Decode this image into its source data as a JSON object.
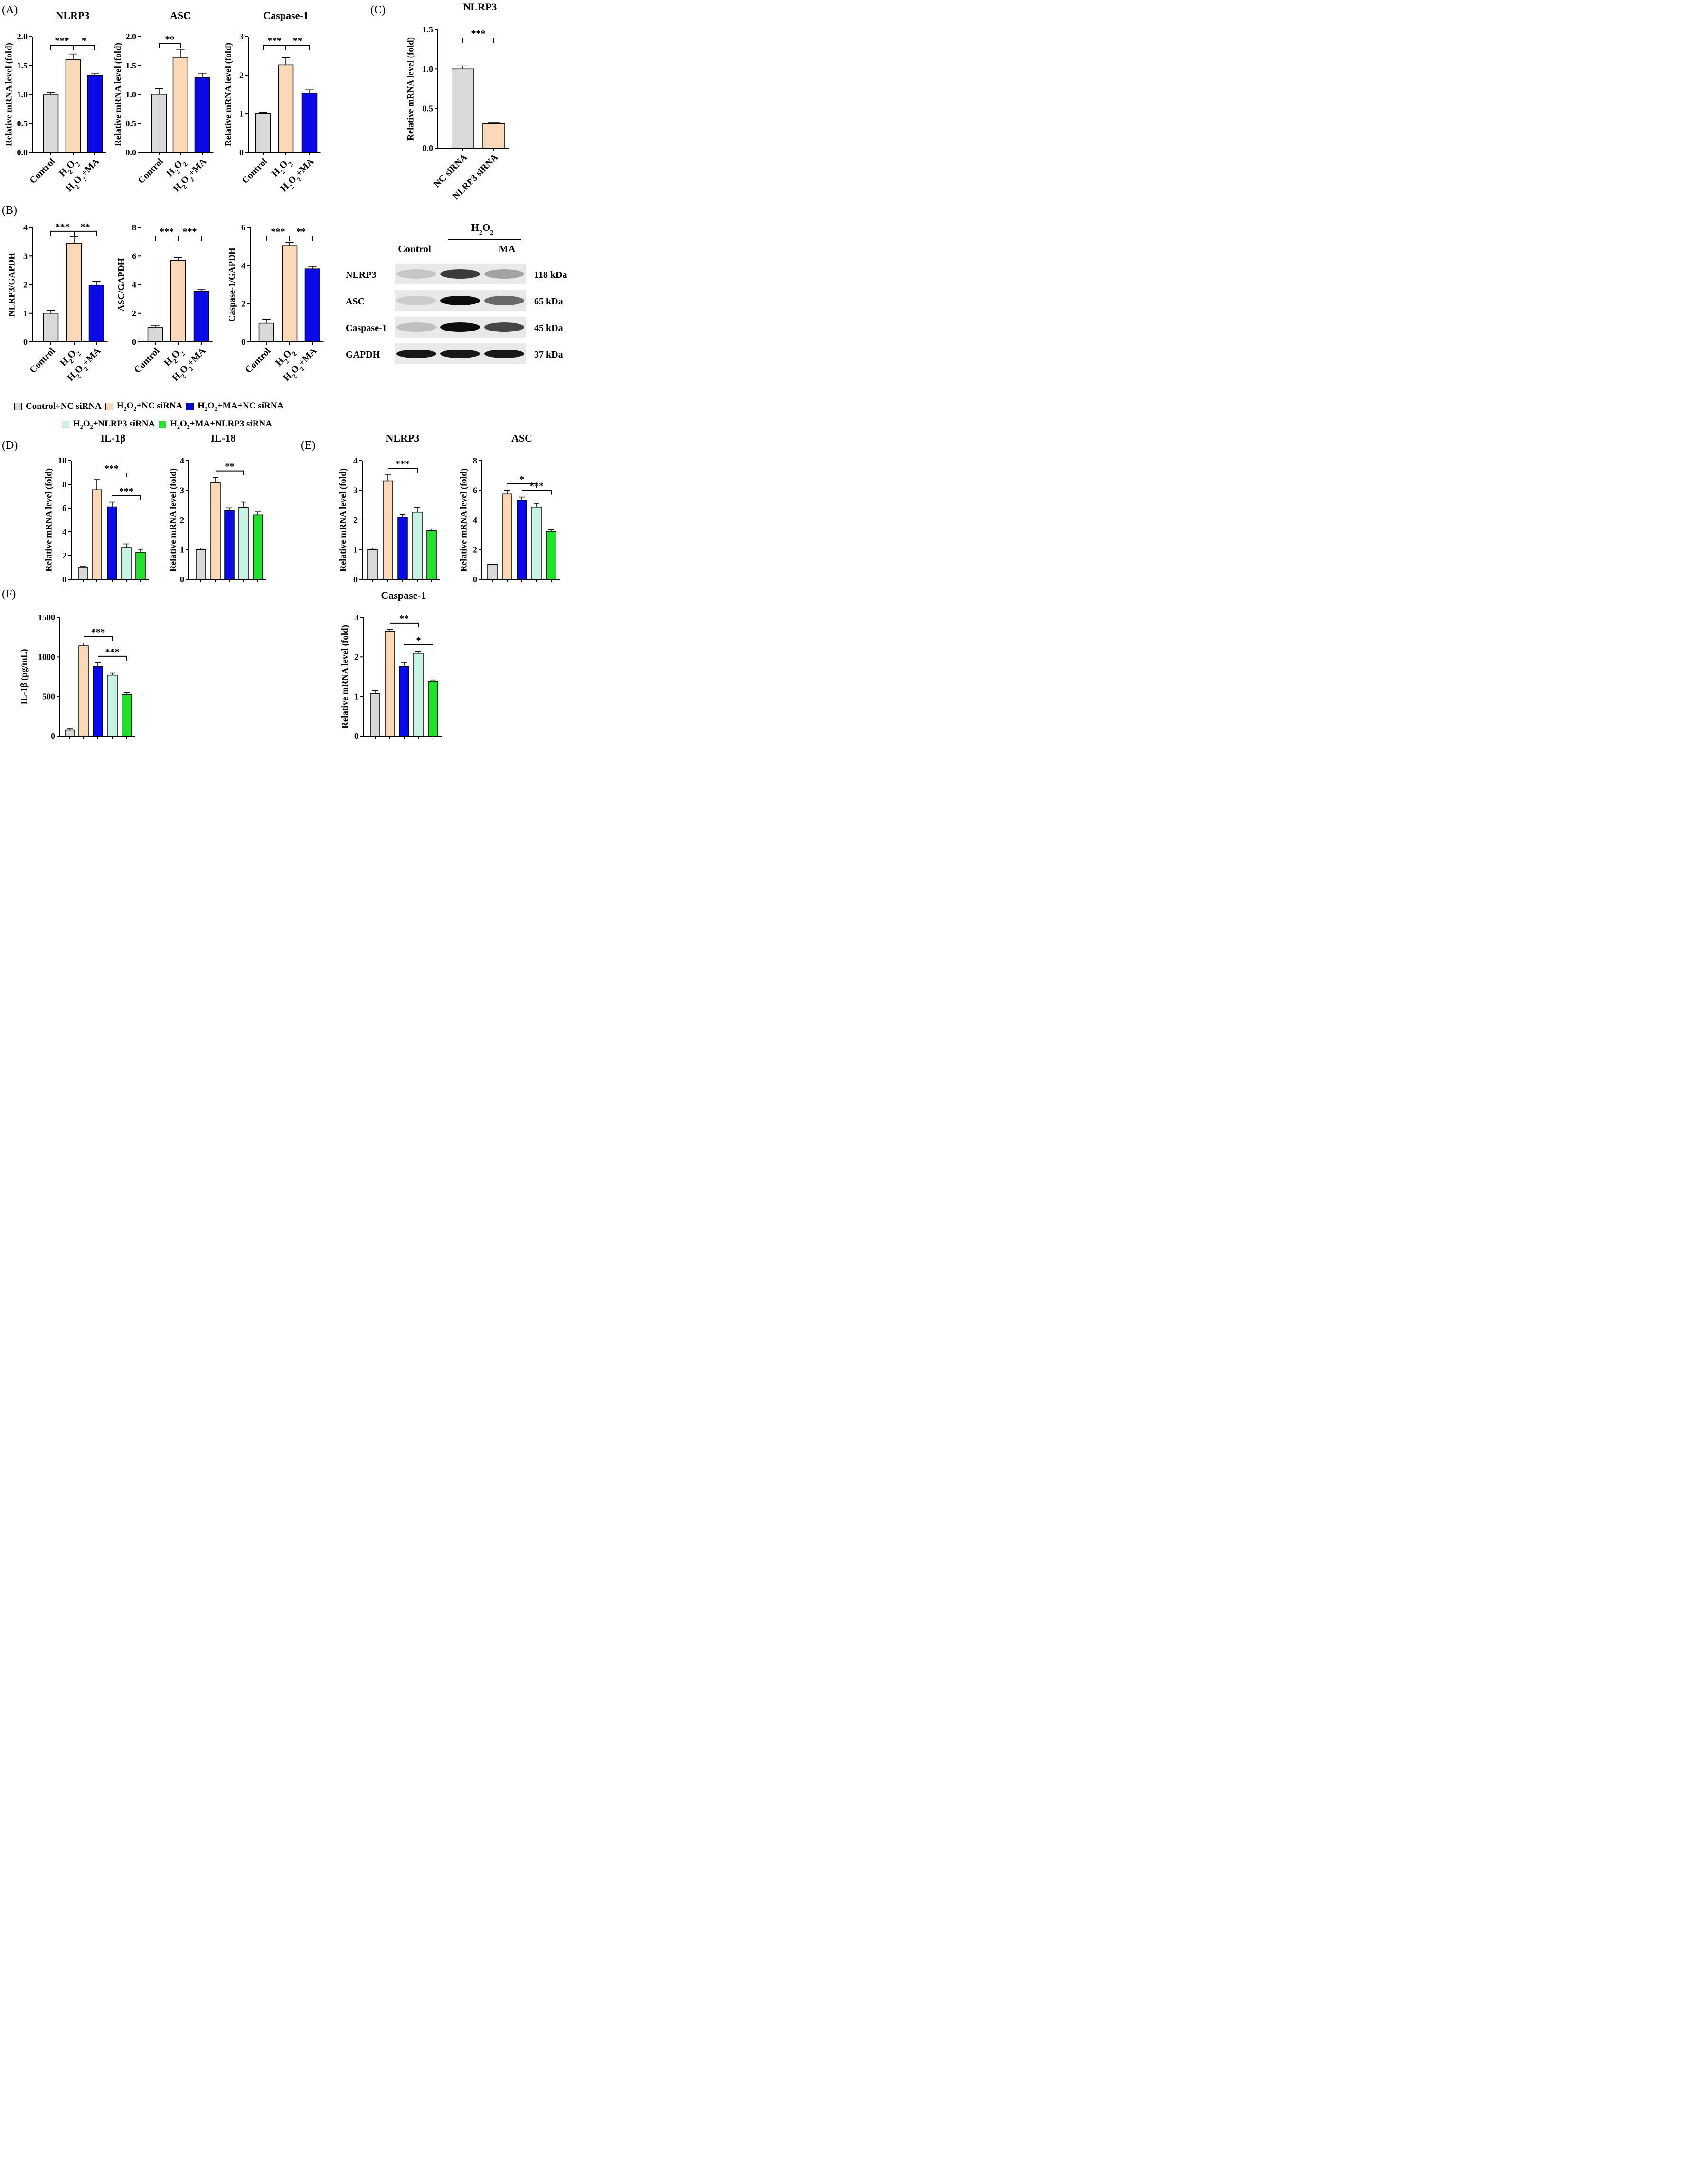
{
  "colors": {
    "control": "#d9d9d9",
    "h2o2": "#fbd9b8",
    "h2o2_ma": "#0a0ae6",
    "h2o2_nlrp3": "#c6f3e4",
    "h2o2_ma_nlrp3": "#22e02d"
  },
  "panel_letters": [
    "(A)",
    "(B)",
    "(C)",
    "(D)",
    "(E)",
    "(F)"
  ],
  "legend": {
    "row1": [
      "Control+NC siRNA",
      "H2O2+NC siRNA",
      "H2O2+MA+NC siRNA"
    ],
    "row2": [
      "H2O2+NLRP3 siRNA",
      "H2O2+MA+NLRP3 siRNA"
    ]
  },
  "blot": {
    "h2o2_label": "H2O2",
    "lanes": [
      "Control",
      "MA"
    ],
    "rows": [
      {
        "protein": "NLRP3",
        "kda": "118 kDa",
        "intensity": [
          0.15,
          0.75,
          0.3
        ]
      },
      {
        "protein": "ASC",
        "kda": "65 kDa",
        "intensity": [
          0.12,
          0.95,
          0.55
        ]
      },
      {
        "protein": "Caspase-1",
        "kda": "45 kDa",
        "intensity": [
          0.18,
          0.95,
          0.7
        ]
      },
      {
        "protein": "GAPDH",
        "kda": "37 kDa",
        "intensity": [
          0.9,
          0.9,
          0.9
        ]
      }
    ]
  },
  "chart_data": [
    {
      "id": "A1",
      "type": "bar",
      "title": "NLRP3",
      "ylabel": "Relative mRNA level (fold)",
      "categories": [
        "Control",
        "H2O2",
        "H2O2+MA"
      ],
      "values": [
        1.0,
        1.6,
        1.33
      ],
      "errors": [
        0.04,
        0.1,
        0.03
      ],
      "ylim": [
        0,
        2.0
      ],
      "ticks": [
        "0.0",
        "0.5",
        "1.0",
        "1.5",
        "2.0"
      ],
      "sig": [
        {
          "from": 0,
          "to": 1,
          "label": "***"
        },
        {
          "from": 1,
          "to": 2,
          "label": "*"
        }
      ]
    },
    {
      "id": "A2",
      "type": "bar",
      "title": "ASC",
      "ylabel": "Relative mRNA level (fold)",
      "categories": [
        "Control",
        "H2O2",
        "H2O2+MA"
      ],
      "values": [
        1.01,
        1.64,
        1.29
      ],
      "errors": [
        0.09,
        0.14,
        0.08
      ],
      "ylim": [
        0,
        2.0
      ],
      "ticks": [
        "0.0",
        "0.5",
        "1.0",
        "1.5",
        "2.0"
      ],
      "sig": [
        {
          "from": 0,
          "to": 1,
          "label": "**"
        }
      ]
    },
    {
      "id": "A3",
      "type": "bar",
      "title": "Caspase-1",
      "ylabel": "Relative mRNA level (fold)",
      "categories": [
        "Control",
        "H2O2",
        "H2O2+MA"
      ],
      "values": [
        1.0,
        2.27,
        1.54
      ],
      "errors": [
        0.04,
        0.18,
        0.08
      ],
      "ylim": [
        0,
        3
      ],
      "ticks": [
        "0",
        "1",
        "2",
        "3"
      ],
      "sig": [
        {
          "from": 0,
          "to": 1,
          "label": "***"
        },
        {
          "from": 1,
          "to": 2,
          "label": "**"
        }
      ]
    },
    {
      "id": "B1",
      "type": "bar",
      "title": "",
      "ylabel": "NLRP3/GAPDH",
      "categories": [
        "Control",
        "H2O2",
        "H2O2+MA"
      ],
      "values": [
        1.0,
        3.45,
        1.98
      ],
      "errors": [
        0.1,
        0.22,
        0.14
      ],
      "ylim": [
        0,
        4
      ],
      "ticks": [
        "0",
        "1",
        "2",
        "3",
        "4"
      ],
      "sig": [
        {
          "from": 0,
          "to": 1,
          "label": "***"
        },
        {
          "from": 1,
          "to": 2,
          "label": "**"
        }
      ]
    },
    {
      "id": "B2",
      "type": "bar",
      "title": "",
      "ylabel": "ASC/GAPDH",
      "categories": [
        "Control",
        "H2O2",
        "H2O2+MA"
      ],
      "values": [
        1.0,
        5.7,
        3.53
      ],
      "errors": [
        0.13,
        0.2,
        0.12
      ],
      "ylim": [
        0,
        8
      ],
      "ticks": [
        "0",
        "2",
        "4",
        "6",
        "8"
      ],
      "sig": [
        {
          "from": 0,
          "to": 1,
          "label": "***"
        },
        {
          "from": 1,
          "to": 2,
          "label": "***"
        }
      ]
    },
    {
      "id": "B3",
      "type": "bar",
      "title": "",
      "ylabel": "Caspase-1/GAPDH",
      "categories": [
        "Control",
        "H2O2",
        "H2O2+MA"
      ],
      "values": [
        0.98,
        5.05,
        3.83
      ],
      "errors": [
        0.2,
        0.16,
        0.13
      ],
      "ylim": [
        0,
        6
      ],
      "ticks": [
        "0",
        "2",
        "4",
        "6"
      ],
      "sig": [
        {
          "from": 0,
          "to": 1,
          "label": "***"
        },
        {
          "from": 1,
          "to": 2,
          "label": "**"
        }
      ]
    },
    {
      "id": "C1",
      "type": "bar",
      "title": "NLRP3",
      "ylabel": "Relative mRNA level (fold)",
      "categories": [
        "NC siRNA",
        "NLRP3 siRNA"
      ],
      "values": [
        1.0,
        0.31
      ],
      "errors": [
        0.04,
        0.02
      ],
      "ylim": [
        0,
        1.5
      ],
      "ticks": [
        "0.0",
        "0.5",
        "1.0",
        "1.5"
      ],
      "sig": [
        {
          "from": 0,
          "to": 1,
          "label": "***"
        }
      ]
    },
    {
      "id": "D1",
      "type": "bar",
      "title": "IL-1β",
      "ylabel": "Relative mRNA level (fold)",
      "values": [
        1.0,
        7.55,
        6.1,
        2.68,
        2.28
      ],
      "errors": [
        0.12,
        0.85,
        0.4,
        0.3,
        0.25
      ],
      "ylim": [
        0,
        10
      ],
      "ticks": [
        "0",
        "2",
        "4",
        "6",
        "8",
        "10"
      ],
      "sig": [
        {
          "from": 1,
          "to": 3,
          "label": "***"
        },
        {
          "from": 2,
          "to": 4,
          "label": "***"
        }
      ]
    },
    {
      "id": "D2",
      "type": "bar",
      "title": "IL-18",
      "ylabel": "Relative mRNA level (fold)",
      "values": [
        1.0,
        3.25,
        2.33,
        2.42,
        2.17
      ],
      "errors": [
        0.05,
        0.18,
        0.08,
        0.18,
        0.1
      ],
      "ylim": [
        0,
        4
      ],
      "ticks": [
        "0",
        "1",
        "2",
        "3",
        "4"
      ],
      "sig": [
        {
          "from": 1,
          "to": 3,
          "label": "**"
        }
      ]
    },
    {
      "id": "E1",
      "type": "bar",
      "title": "NLRP3",
      "ylabel": "Relative mRNA level (fold)",
      "values": [
        1.0,
        3.32,
        2.1,
        2.26,
        1.64
      ],
      "errors": [
        0.05,
        0.2,
        0.08,
        0.17,
        0.05
      ],
      "ylim": [
        0,
        4
      ],
      "ticks": [
        "0",
        "1",
        "2",
        "3",
        "4"
      ],
      "sig": [
        {
          "from": 1,
          "to": 3,
          "label": "***"
        }
      ]
    },
    {
      "id": "E2",
      "type": "bar",
      "title": "ASC",
      "ylabel": "Relative mRNA level (fold)",
      "values": [
        1.0,
        5.75,
        5.35,
        4.87,
        3.23
      ],
      "errors": [
        0.02,
        0.25,
        0.2,
        0.25,
        0.12
      ],
      "ylim": [
        0,
        8
      ],
      "ticks": [
        "0",
        "2",
        "4",
        "6",
        "8"
      ],
      "sig": [
        {
          "from": 1,
          "to": 3,
          "label": "*"
        },
        {
          "from": 2,
          "to": 4,
          "label": "***"
        }
      ]
    },
    {
      "id": "E3",
      "type": "bar",
      "title": "Caspase-1",
      "ylabel": "Relative mRNA level (fold)",
      "values": [
        1.07,
        2.65,
        1.76,
        2.09,
        1.38
      ],
      "errors": [
        0.08,
        0.04,
        0.1,
        0.05,
        0.04
      ],
      "ylim": [
        0,
        3
      ],
      "ticks": [
        "0",
        "1",
        "2",
        "3"
      ],
      "sig": [
        {
          "from": 1,
          "to": 3,
          "label": "**"
        },
        {
          "from": 2,
          "to": 4,
          "label": "*"
        }
      ]
    },
    {
      "id": "F1",
      "type": "bar",
      "title": "",
      "ylabel": "IL-1β (pg/mL)",
      "values": [
        75,
        1140,
        880,
        770,
        525
      ],
      "errors": [
        15,
        35,
        45,
        25,
        25
      ],
      "ylim": [
        0,
        1500
      ],
      "ticks": [
        "0",
        "500",
        "1000",
        "1500"
      ],
      "sig": [
        {
          "from": 1,
          "to": 3,
          "label": "***"
        },
        {
          "from": 2,
          "to": 4,
          "label": "***"
        }
      ]
    }
  ]
}
